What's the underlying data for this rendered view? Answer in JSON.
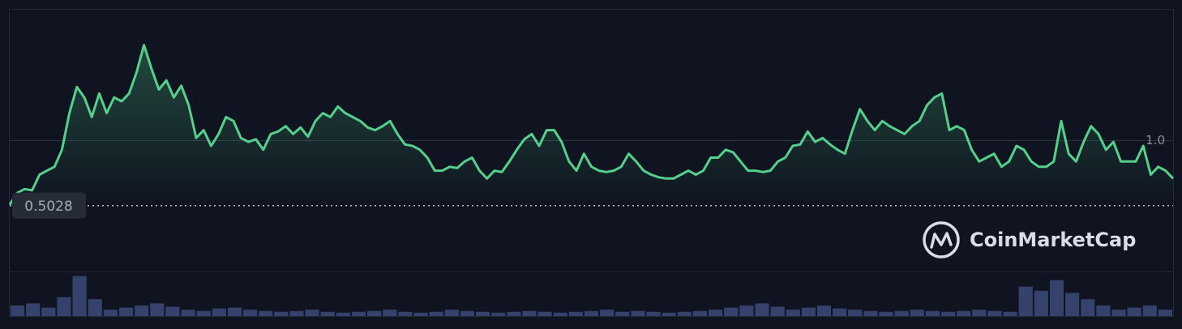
{
  "chart_data": {
    "type": "line",
    "color": "#55d08c",
    "values": [
      0.51,
      0.6,
      0.63,
      0.62,
      0.74,
      0.77,
      0.8,
      0.93,
      1.21,
      1.41,
      1.33,
      1.18,
      1.36,
      1.21,
      1.33,
      1.3,
      1.36,
      1.52,
      1.73,
      1.55,
      1.39,
      1.46,
      1.33,
      1.42,
      1.27,
      1.02,
      1.08,
      0.96,
      1.05,
      1.18,
      1.15,
      1.02,
      0.99,
      1.01,
      0.93,
      1.05,
      1.07,
      1.11,
      1.05,
      1.1,
      1.03,
      1.15,
      1.21,
      1.18,
      1.26,
      1.21,
      1.18,
      1.15,
      1.1,
      1.08,
      1.11,
      1.15,
      1.05,
      0.97,
      0.96,
      0.93,
      0.87,
      0.77,
      0.77,
      0.8,
      0.79,
      0.84,
      0.87,
      0.77,
      0.71,
      0.77,
      0.76,
      0.84,
      0.93,
      1.01,
      1.05,
      0.96,
      1.08,
      1.08,
      0.99,
      0.84,
      0.77,
      0.9,
      0.8,
      0.77,
      0.76,
      0.77,
      0.8,
      0.9,
      0.84,
      0.77,
      0.74,
      0.72,
      0.71,
      0.71,
      0.74,
      0.77,
      0.74,
      0.77,
      0.87,
      0.87,
      0.93,
      0.91,
      0.84,
      0.77,
      0.77,
      0.76,
      0.77,
      0.84,
      0.87,
      0.96,
      0.97,
      1.07,
      0.99,
      1.02,
      0.97,
      0.93,
      0.9,
      1.08,
      1.24,
      1.15,
      1.08,
      1.15,
      1.11,
      1.08,
      1.05,
      1.11,
      1.15,
      1.27,
      1.33,
      1.36,
      1.08,
      1.11,
      1.08,
      0.93,
      0.84,
      0.87,
      0.9,
      0.8,
      0.84,
      0.96,
      0.93,
      0.84,
      0.8,
      0.8,
      0.84,
      1.15,
      0.9,
      0.84,
      0.99,
      1.11,
      1.05,
      0.93,
      0.99,
      0.84,
      0.84,
      0.84,
      0.96,
      0.74,
      0.8,
      0.77,
      0.71
    ],
    "ylim": [
      0,
      2
    ],
    "yticks": [
      {
        "value": 1,
        "label": "1.0"
      }
    ],
    "current_price": 0.5028,
    "volume": {
      "color": "#3b4a7a",
      "values": [
        25,
        30,
        20,
        45,
        95,
        40,
        15,
        20,
        25,
        30,
        22,
        15,
        12,
        18,
        20,
        15,
        12,
        10,
        12,
        15,
        10,
        8,
        10,
        12,
        15,
        10,
        8,
        10,
        15,
        12,
        10,
        8,
        10,
        12,
        10,
        8,
        10,
        12,
        15,
        10,
        12,
        10,
        8,
        10,
        12,
        15,
        20,
        25,
        30,
        22,
        15,
        20,
        25,
        18,
        15,
        12,
        10,
        12,
        15,
        12,
        10,
        12,
        15,
        12,
        10,
        70,
        60,
        85,
        55,
        40,
        25,
        15,
        20,
        25,
        15
      ]
    },
    "volume_ylim": [
      0,
      100
    ],
    "watermark": "CoinMarketCap"
  }
}
